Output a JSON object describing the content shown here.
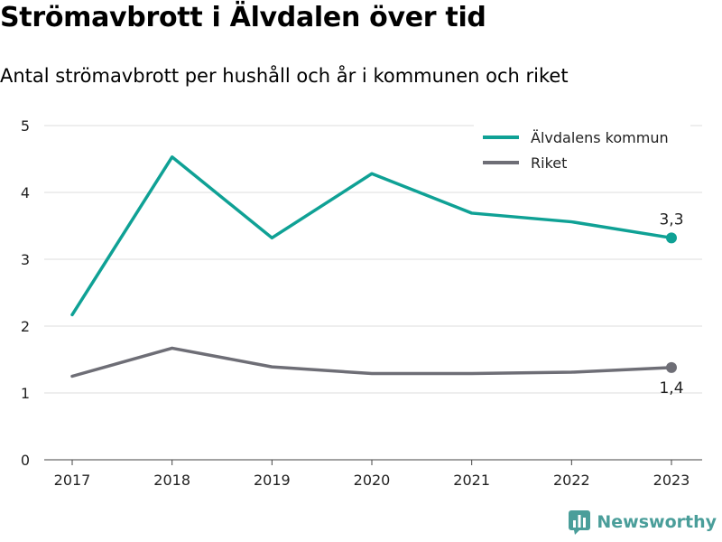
{
  "title": "Strömavbrott i Älvdalen över tid",
  "subtitle": "Antal strömavbrott per hushåll och år i kommunen och riket",
  "brand": {
    "name": "Newsworthy",
    "icon": "newsworthy-logo-icon",
    "color": "#4a9e9a"
  },
  "chart_data": {
    "type": "line",
    "title": "Strömavbrott i Älvdalen över tid",
    "subtitle": "Antal strömavbrott per hushåll och år i kommunen och riket",
    "xlabel": "",
    "ylabel": "",
    "x": [
      "2017",
      "2018",
      "2019",
      "2020",
      "2021",
      "2022",
      "2023"
    ],
    "ylim": [
      0,
      5
    ],
    "yticks": [
      "0",
      "1",
      "2",
      "3",
      "4",
      "5"
    ],
    "grid": true,
    "legend": "top-right",
    "series": [
      {
        "name": "Älvdalens kommun",
        "color": "#0fa195",
        "values": [
          2.17,
          4.53,
          3.32,
          4.28,
          3.69,
          3.56,
          3.32
        ],
        "end_label": "3,3"
      },
      {
        "name": "Riket",
        "color": "#6e6e76",
        "values": [
          1.25,
          1.67,
          1.39,
          1.29,
          1.29,
          1.31,
          1.38
        ],
        "end_label": "1,4"
      }
    ]
  }
}
